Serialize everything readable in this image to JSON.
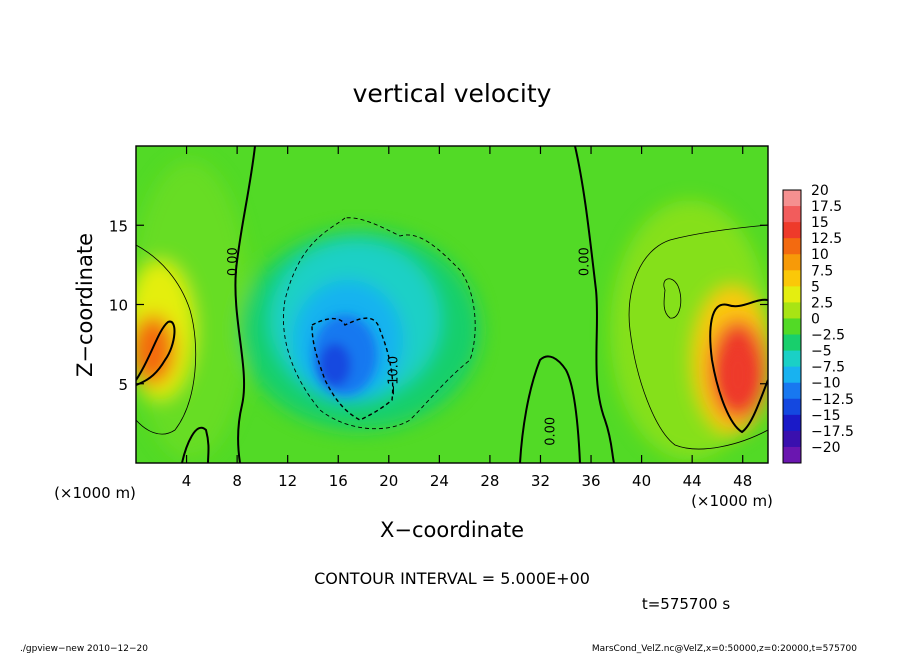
{
  "chart_data": {
    "type": "heatmap",
    "title": "vertical velocity",
    "xlabel": "X−coordinate",
    "ylabel": "Z−coordinate",
    "x_unit": "(×1000 m)",
    "y_unit": "(×1000 m)",
    "xlim": [
      0,
      50
    ],
    "ylim": [
      0,
      20
    ],
    "x_ticks": [
      4,
      8,
      12,
      16,
      20,
      24,
      28,
      32,
      36,
      40,
      44,
      48
    ],
    "y_ticks": [
      5,
      10,
      15
    ],
    "contour_interval_text": "CONTOUR INTERVAL = 5.000E+00",
    "contour_labels": [
      {
        "text": "0.00",
        "x": 8,
        "z": 12.7
      },
      {
        "text": "0.00",
        "x": 35.8,
        "z": 12.7
      },
      {
        "text": "0.00",
        "x": 33.1,
        "z": 2
      },
      {
        "text": "−10.0",
        "x": 20.7,
        "z": 5.5
      }
    ],
    "colorbar": {
      "labels": [
        "20",
        "17.5",
        "15",
        "12.5",
        "10",
        "7.5",
        "5",
        "2.5",
        "0",
        "−2.5",
        "−5",
        "−7.5",
        "−10",
        "−12.5",
        "−15",
        "−17.5",
        "−20"
      ],
      "colors": [
        "#f59090",
        "#f25c5c",
        "#ee3a2a",
        "#f36a10",
        "#f79a08",
        "#fbc808",
        "#e4ee10",
        "#a8e414",
        "#52da26",
        "#18cf6c",
        "#1ad0c6",
        "#18b2f0",
        "#1878f0",
        "#1448e0",
        "#1a1ac8",
        "#3a10ae",
        "#6a16b0"
      ]
    },
    "features": [
      {
        "name": "updraft-left",
        "x": 1.5,
        "z": 7,
        "value": 12.5
      },
      {
        "name": "updraft-right",
        "x": 47,
        "z": 6.5,
        "value": 15
      },
      {
        "name": "downdraft-center",
        "x": 17.5,
        "z": 6.5,
        "value": -12.5
      }
    ],
    "time_label": "t=575700 s",
    "footer_left": "./gpview−new   2010−12−20",
    "footer_right": "MarsCond_VelZ.nc@VelZ,x=0:50000,z=0:20000,t=575700"
  }
}
